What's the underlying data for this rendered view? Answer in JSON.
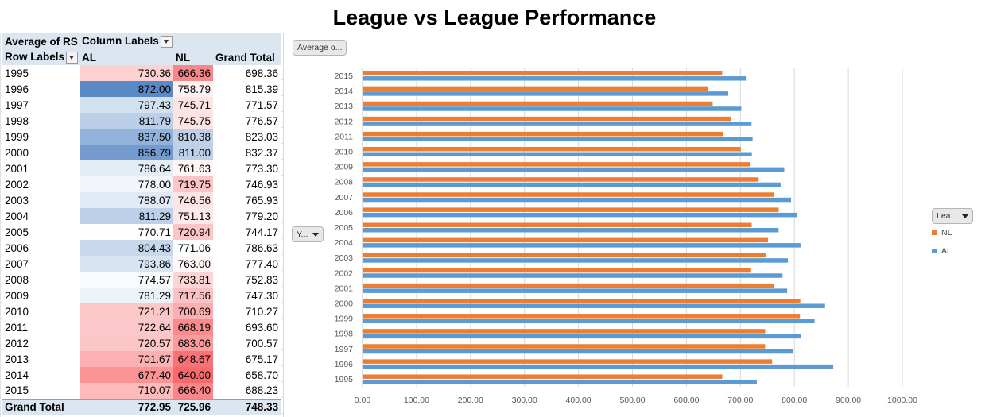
{
  "title": "League vs League Performance",
  "pivot": {
    "values_label": "Average of RS",
    "column_labels": "Column Labels",
    "row_labels": "Row Labels",
    "columns": [
      "AL",
      "NL",
      "Grand Total"
    ],
    "rows": [
      {
        "year": "1995",
        "al": "730.36",
        "nl": "666.36",
        "gt": "698.36"
      },
      {
        "year": "1996",
        "al": "872.00",
        "nl": "758.79",
        "gt": "815.39"
      },
      {
        "year": "1997",
        "al": "797.43",
        "nl": "745.71",
        "gt": "771.57"
      },
      {
        "year": "1998",
        "al": "811.79",
        "nl": "745.75",
        "gt": "776.57"
      },
      {
        "year": "1999",
        "al": "837.50",
        "nl": "810.38",
        "gt": "823.03"
      },
      {
        "year": "2000",
        "al": "856.79",
        "nl": "811.00",
        "gt": "832.37"
      },
      {
        "year": "2001",
        "al": "786.64",
        "nl": "761.63",
        "gt": "773.30"
      },
      {
        "year": "2002",
        "al": "778.00",
        "nl": "719.75",
        "gt": "746.93"
      },
      {
        "year": "2003",
        "al": "788.07",
        "nl": "746.56",
        "gt": "765.93"
      },
      {
        "year": "2004",
        "al": "811.29",
        "nl": "751.13",
        "gt": "779.20"
      },
      {
        "year": "2005",
        "al": "770.71",
        "nl": "720.94",
        "gt": "744.17"
      },
      {
        "year": "2006",
        "al": "804.43",
        "nl": "771.06",
        "gt": "786.63"
      },
      {
        "year": "2007",
        "al": "793.86",
        "nl": "763.00",
        "gt": "777.40"
      },
      {
        "year": "2008",
        "al": "774.57",
        "nl": "733.81",
        "gt": "752.83"
      },
      {
        "year": "2009",
        "al": "781.29",
        "nl": "717.56",
        "gt": "747.30"
      },
      {
        "year": "2010",
        "al": "721.21",
        "nl": "700.69",
        "gt": "710.27"
      },
      {
        "year": "2011",
        "al": "722.64",
        "nl": "668.19",
        "gt": "693.60"
      },
      {
        "year": "2012",
        "al": "720.57",
        "nl": "683.06",
        "gt": "700.57"
      },
      {
        "year": "2013",
        "al": "701.67",
        "nl": "648.67",
        "gt": "675.17"
      },
      {
        "year": "2014",
        "al": "677.40",
        "nl": "640.00",
        "gt": "658.70"
      },
      {
        "year": "2015",
        "al": "710.07",
        "nl": "666.40",
        "gt": "688.23"
      }
    ],
    "total": {
      "label": "Grand Total",
      "al": "772.95",
      "nl": "725.96",
      "gt": "748.33"
    }
  },
  "chart_buttons": {
    "values": "Average o...",
    "axis": "Y...",
    "legend": "Lea..."
  },
  "chart_data": {
    "type": "bar",
    "orientation": "horizontal",
    "categories": [
      "1995",
      "1996",
      "1997",
      "1998",
      "1999",
      "2000",
      "2001",
      "2002",
      "2003",
      "2004",
      "2005",
      "2006",
      "2007",
      "2008",
      "2009",
      "2010",
      "2011",
      "2012",
      "2013",
      "2014",
      "2015"
    ],
    "series": [
      {
        "name": "NL",
        "color": "#ed7d31",
        "values": [
          666.36,
          758.79,
          745.71,
          745.75,
          810.38,
          811.0,
          761.63,
          719.75,
          746.56,
          751.13,
          720.94,
          771.06,
          763.0,
          733.81,
          717.56,
          700.69,
          668.19,
          683.06,
          648.67,
          640.0,
          666.4
        ]
      },
      {
        "name": "AL",
        "color": "#5b9bd5",
        "values": [
          730.36,
          872.0,
          797.43,
          811.79,
          837.5,
          856.79,
          786.64,
          778.0,
          788.07,
          811.29,
          770.71,
          804.43,
          793.86,
          774.57,
          781.29,
          721.21,
          722.64,
          720.57,
          701.67,
          677.4,
          710.07
        ]
      }
    ],
    "x_ticks": [
      "0.00",
      "100.00",
      "200.00",
      "300.00",
      "400.00",
      "500.00",
      "600.00",
      "700.00",
      "800.00",
      "900.00",
      "1000.00"
    ],
    "xlim": [
      0,
      1000
    ],
    "grid": true,
    "legend_position": "right"
  }
}
